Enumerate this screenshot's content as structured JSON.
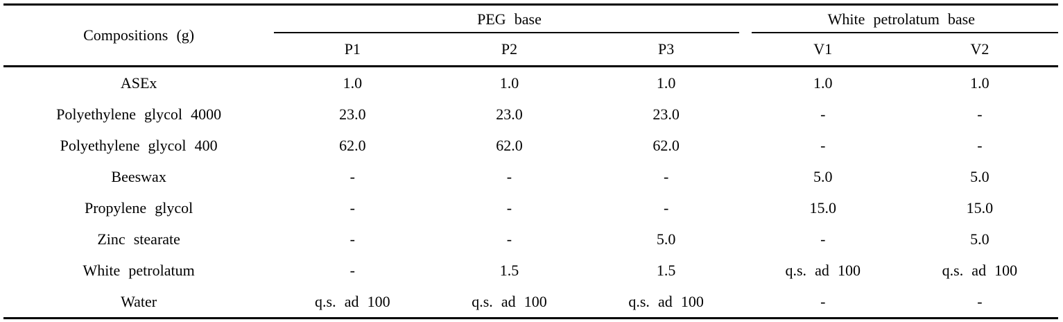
{
  "table": {
    "corner_header": "Compositions (g)",
    "groups": [
      {
        "label": "PEG base",
        "colspan": 3
      },
      {
        "label": "White petrolatum base",
        "colspan": 2
      }
    ],
    "columns": [
      "P1",
      "P2",
      "P3",
      "V1",
      "V2"
    ],
    "rows": [
      {
        "label": "ASEx",
        "values": [
          "1.0",
          "1.0",
          "1.0",
          "1.0",
          "1.0"
        ]
      },
      {
        "label": "Polyethylene glycol 4000",
        "values": [
          "23.0",
          "23.0",
          "23.0",
          "-",
          "-"
        ]
      },
      {
        "label": "Polyethylene glycol 400",
        "values": [
          "62.0",
          "62.0",
          "62.0",
          "-",
          "-"
        ]
      },
      {
        "label": "Beeswax",
        "values": [
          "-",
          "-",
          "-",
          "5.0",
          "5.0"
        ]
      },
      {
        "label": "Propylene glycol",
        "values": [
          "-",
          "-",
          "-",
          "15.0",
          "15.0"
        ]
      },
      {
        "label": "Zinc stearate",
        "values": [
          "-",
          "-",
          "5.0",
          "-",
          "5.0"
        ]
      },
      {
        "label": "White petrolatum",
        "values": [
          "-",
          "1.5",
          "1.5",
          "q.s. ad 100",
          "q.s. ad 100"
        ]
      },
      {
        "label": "Water",
        "values": [
          "q.s. ad 100",
          "q.s. ad 100",
          "q.s. ad 100",
          "-",
          "-"
        ]
      }
    ],
    "colors": {
      "text": "#000000",
      "background": "#ffffff",
      "rule": "#000000"
    }
  }
}
